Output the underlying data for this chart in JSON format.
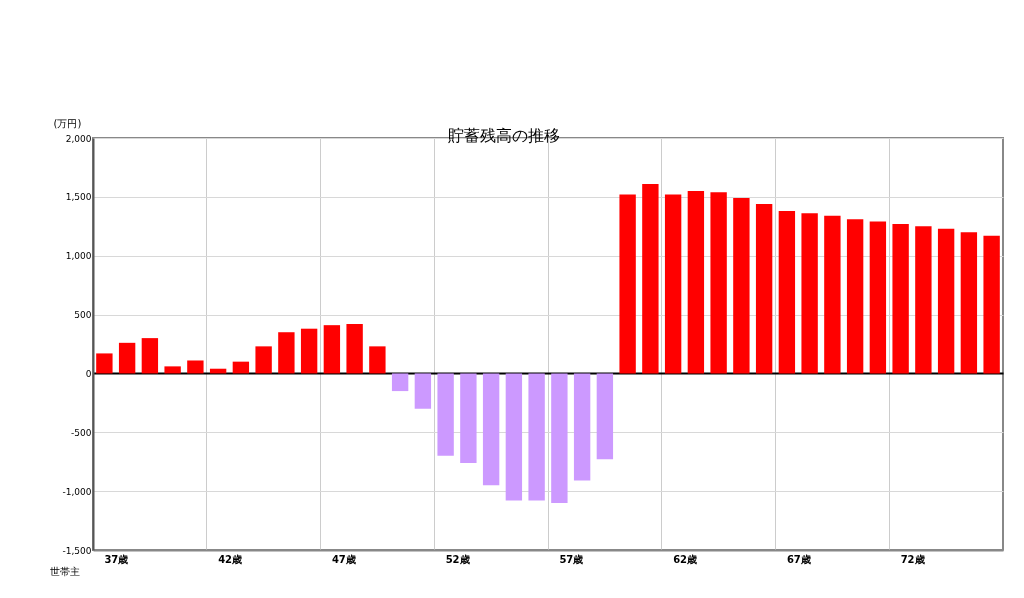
{
  "chart_data": {
    "type": "bar",
    "title": "貯蓄残高の推移",
    "ylabel": "(万円)",
    "categories": [
      "37歳",
      null,
      null,
      null,
      null,
      "42歳",
      null,
      null,
      null,
      null,
      "47歳",
      null,
      null,
      null,
      null,
      "52歳",
      null,
      null,
      null,
      null,
      "57歳",
      null,
      null,
      null,
      null,
      "62歳",
      null,
      null,
      null,
      null,
      "67歳",
      null,
      null,
      null,
      null,
      "72歳",
      null,
      null,
      null,
      null
    ],
    "values": [
      170,
      260,
      300,
      60,
      110,
      40,
      100,
      230,
      350,
      380,
      410,
      420,
      230,
      -150,
      -300,
      -700,
      -760,
      -950,
      -1080,
      -1080,
      -1100,
      -910,
      -730,
      1520,
      1610,
      1520,
      1550,
      1540,
      1490,
      1440,
      1380,
      1360,
      1340,
      1310,
      1290,
      1270,
      1250,
      1230,
      1200,
      1170
    ],
    "colors": [
      "#ff0000",
      "#ff0000",
      "#ff0000",
      "#ff0000",
      "#ff0000",
      "#ff0000",
      "#ff0000",
      "#ff0000",
      "#ff0000",
      "#ff0000",
      "#ff0000",
      "#ff0000",
      "#ff0000",
      "#cc99ff",
      "#cc99ff",
      "#cc99ff",
      "#cc99ff",
      "#cc99ff",
      "#cc99ff",
      "#cc99ff",
      "#cc99ff",
      "#cc99ff",
      "#cc99ff",
      "#ff0000",
      "#ff0000",
      "#ff0000",
      "#ff0000",
      "#ff0000",
      "#ff0000",
      "#ff0000",
      "#ff0000",
      "#ff0000",
      "#ff0000",
      "#ff0000",
      "#ff0000",
      "#ff0000",
      "#ff0000",
      "#ff0000",
      "#ff0000",
      "#ff0000"
    ],
    "ylim": [
      -1500,
      2000
    ],
    "yticks": [
      {
        "value": -1500,
        "label": "-1,500"
      },
      {
        "value": -1000,
        "label": "-1,000"
      },
      -500,
      0,
      500,
      {
        "value": 1000,
        "label": "1,000"
      },
      {
        "value": 1500,
        "label": "1,500"
      },
      {
        "value": 2000,
        "label": "2,000"
      }
    ],
    "grid": true,
    "annotations": [
      "世帯主"
    ]
  }
}
